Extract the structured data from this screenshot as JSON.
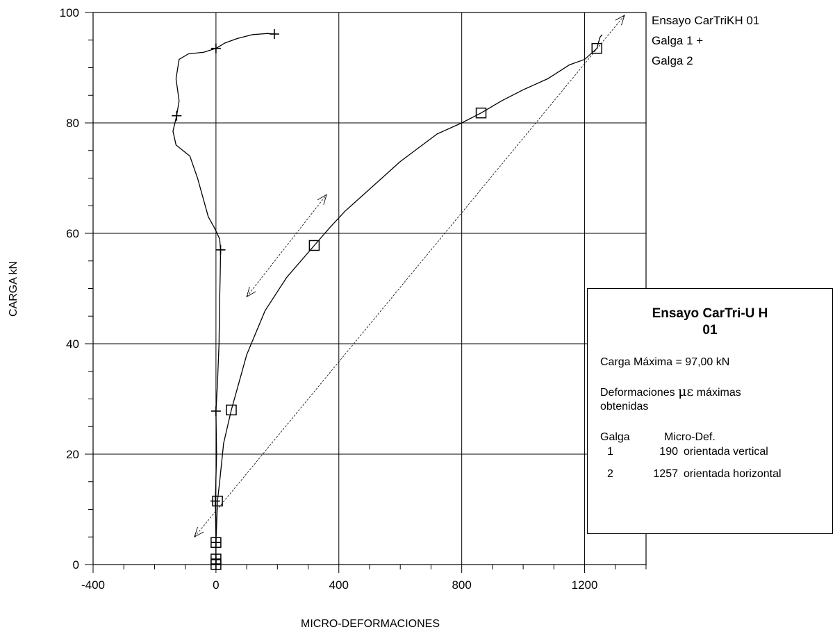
{
  "chart_data": {
    "type": "line",
    "xlabel": "MICRO-DEFORMACIONES",
    "ylabel": "CARGA  kN",
    "xlim": [
      -400,
      1400
    ],
    "ylim": [
      0,
      100
    ],
    "x_ticks": [
      -400,
      400,
      800,
      1200
    ],
    "x_tick_labels": [
      "-400",
      "400",
      "800",
      "1200"
    ],
    "zero_tick_label": "0",
    "y_ticks": [
      0,
      20,
      40,
      60,
      80,
      100
    ],
    "y_tick_labels": [
      "0",
      "20",
      "40",
      "60",
      "80",
      "100"
    ],
    "grid": true,
    "legend": {
      "placement": "top-right",
      "title": "Ensayo CarTriKH 01",
      "entries": [
        "Galga 1  +",
        "Galga 2"
      ]
    },
    "series": [
      {
        "name": "Galga 1",
        "marker": "+",
        "points": [
          [
            0,
            0
          ],
          [
            0,
            1
          ],
          [
            0,
            4
          ],
          [
            -2,
            11.5
          ],
          [
            2,
            20
          ],
          [
            0,
            27.8
          ],
          [
            5,
            33
          ],
          [
            10,
            40
          ],
          [
            12,
            48
          ],
          [
            14,
            53
          ],
          [
            15,
            57
          ],
          [
            12,
            59
          ],
          [
            -5,
            61
          ],
          [
            -25,
            63
          ],
          [
            -40,
            66
          ],
          [
            -60,
            70
          ],
          [
            -85,
            74
          ],
          [
            -130,
            76
          ],
          [
            -140,
            78.5
          ],
          [
            -128,
            81.3
          ],
          [
            -120,
            84
          ],
          [
            -130,
            88
          ],
          [
            -120,
            91.5
          ],
          [
            -90,
            92.5
          ],
          [
            -40,
            92.8
          ],
          [
            0,
            93.5
          ],
          [
            30,
            94.5
          ],
          [
            70,
            95.3
          ],
          [
            120,
            96
          ],
          [
            170,
            96.2
          ],
          [
            190,
            96.1
          ]
        ],
        "marker_points": [
          [
            0,
            0
          ],
          [
            0,
            1
          ],
          [
            0,
            4
          ],
          [
            -2,
            11.5
          ],
          [
            0,
            27.8
          ],
          [
            15,
            57
          ],
          [
            -128,
            81.3
          ],
          [
            0,
            93.5
          ],
          [
            190,
            96.1
          ]
        ]
      },
      {
        "name": "Galga 2",
        "marker": "square",
        "points": [
          [
            0,
            0
          ],
          [
            0,
            1
          ],
          [
            0,
            4
          ],
          [
            5,
            11.5
          ],
          [
            12,
            15
          ],
          [
            25,
            22
          ],
          [
            50,
            28
          ],
          [
            100,
            38
          ],
          [
            160,
            46
          ],
          [
            230,
            52
          ],
          [
            320,
            57.8
          ],
          [
            370,
            61
          ],
          [
            420,
            64
          ],
          [
            480,
            67
          ],
          [
            540,
            70
          ],
          [
            600,
            73
          ],
          [
            660,
            75.5
          ],
          [
            720,
            78
          ],
          [
            800,
            80
          ],
          [
            863,
            81.8
          ],
          [
            930,
            84
          ],
          [
            1000,
            86
          ],
          [
            1080,
            88
          ],
          [
            1150,
            90.5
          ],
          [
            1200,
            91.5
          ],
          [
            1240,
            93.5
          ],
          [
            1250,
            95.5
          ],
          [
            1257,
            96
          ]
        ],
        "marker_points": [
          [
            0,
            0
          ],
          [
            0,
            1
          ],
          [
            0,
            4
          ],
          [
            5,
            11.5
          ],
          [
            50,
            28
          ],
          [
            320,
            57.8
          ],
          [
            863,
            81.8
          ],
          [
            1240,
            93.5
          ]
        ]
      },
      {
        "name": "",
        "style": "dashed-arrow",
        "points": [
          [
            -70,
            5
          ],
          [
            1330,
            99.5
          ]
        ]
      },
      {
        "name": "",
        "style": "dashed-arrow",
        "points": [
          [
            100,
            48.5
          ],
          [
            360,
            67
          ]
        ]
      }
    ]
  },
  "info_box": {
    "title_line1": "Ensayo CarTri-U H",
    "title_line2": "01",
    "max_load": "Carga Máxima = 97,00 kN",
    "def_prefix": "Deformaciones",
    "mu_symbol": "με",
    "def_suffix": "máximas",
    "def_line2": "obtenidas",
    "col_galga": "Galga",
    "col_micro": "Micro-Def.",
    "rows": [
      {
        "galga": "1",
        "value": "190",
        "desc": "orientada vertical"
      },
      {
        "galga": "2",
        "value": "1257",
        "desc": "orientada horizontal"
      }
    ]
  }
}
